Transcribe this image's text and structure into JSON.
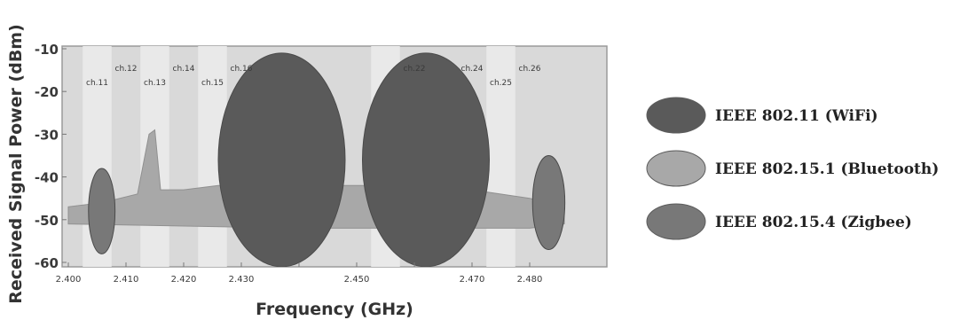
{
  "chart_data": {
    "type": "area",
    "ylabel": "Received Signal Power (dBm)",
    "xlabel": "Frequency (GHz)",
    "ylim": [
      -60,
      -10
    ],
    "xlim": [
      2.4,
      2.4865
    ],
    "yticks": [
      -10,
      -20,
      -30,
      -40,
      -50,
      -60
    ],
    "ytick_labels": [
      "-10",
      "-20",
      "-30",
      "-40",
      "-50",
      "-60"
    ],
    "xticks": [
      2.4,
      2.41,
      2.42,
      2.43,
      2.44,
      2.45,
      2.46,
      2.47,
      2.48
    ],
    "xtick_labels": [
      "2.400",
      "2.410",
      "2.420",
      "2.430",
      "",
      "2.450",
      "",
      "2.470",
      "2.480"
    ],
    "channels": [
      {
        "label": "ch.11",
        "freq": 2.405,
        "row": 2
      },
      {
        "label": "ch.12",
        "freq": 2.41,
        "row": 1
      },
      {
        "label": "ch.13",
        "freq": 2.415,
        "row": 2
      },
      {
        "label": "ch.14",
        "freq": 2.42,
        "row": 1
      },
      {
        "label": "ch.15",
        "freq": 2.425,
        "row": 2
      },
      {
        "label": "ch.16",
        "freq": 2.43,
        "row": 1
      },
      {
        "label": "ch.22",
        "freq": 2.46,
        "row": 1
      },
      {
        "label": "ch.24",
        "freq": 2.47,
        "row": 1
      },
      {
        "label": "ch.25",
        "freq": 2.475,
        "row": 2
      },
      {
        "label": "ch.26",
        "freq": 2.48,
        "row": 1
      }
    ],
    "series": [
      {
        "name": "IEEE 802.11 (WiFi)",
        "kind": "ellipse",
        "color": "#5a5a5a",
        "items": [
          {
            "center": 2.437,
            "half_width": 0.011,
            "y_top": -11,
            "y_bottom": -61
          },
          {
            "center": 2.462,
            "half_width": 0.011,
            "y_top": -11,
            "y_bottom": -61
          }
        ]
      },
      {
        "name": "IEEE 802.15.1 (Bluetooth)",
        "kind": "area",
        "color": "#a8a8a8",
        "points": [
          [
            2.4,
            -50
          ],
          [
            2.4,
            -47
          ],
          [
            2.406,
            -46
          ],
          [
            2.412,
            -44
          ],
          [
            2.414,
            -30
          ],
          [
            2.415,
            -29
          ],
          [
            2.416,
            -43
          ],
          [
            2.42,
            -43
          ],
          [
            2.426,
            -42
          ],
          [
            2.44,
            -42
          ],
          [
            2.454,
            -42
          ],
          [
            2.456,
            -36
          ],
          [
            2.457,
            -42
          ],
          [
            2.47,
            -43
          ],
          [
            2.48,
            -45
          ],
          [
            2.486,
            -47
          ],
          [
            2.486,
            -51
          ],
          [
            2.48,
            -52
          ],
          [
            2.47,
            -52
          ],
          [
            2.44,
            -52
          ],
          [
            2.4,
            -51
          ]
        ]
      },
      {
        "name": "IEEE 802.15.4 (Zigbee)",
        "kind": "ellipse",
        "color": "#787878",
        "items": [
          {
            "center": 2.4058,
            "half_width": 0.0023,
            "y_top": -38,
            "y_bottom": -58
          },
          {
            "center": 2.4833,
            "half_width": 0.0028,
            "y_top": -35,
            "y_bottom": -57
          }
        ]
      }
    ]
  }
}
